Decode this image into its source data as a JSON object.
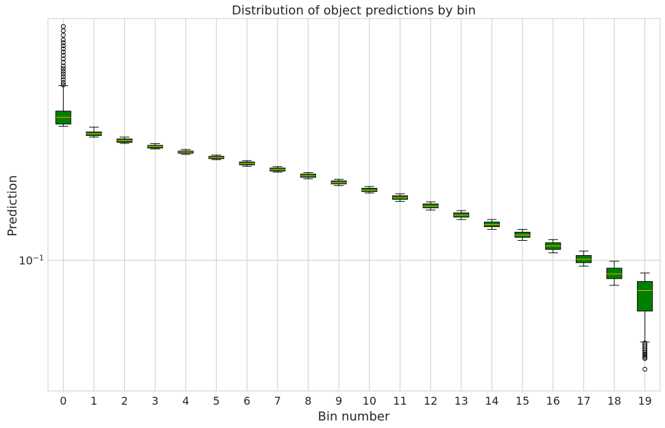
{
  "chart_data": {
    "type": "box",
    "title": "Distribution of object predictions by bin",
    "xlabel": "Bin number",
    "ylabel": "Prediction",
    "y_scale": "log",
    "ylim": [
      0.0255,
      1.25
    ],
    "y_tick_label": {
      "base": "10",
      "exponent": "−1",
      "value": 0.1
    },
    "grid": true,
    "box_color": "#008000",
    "median_color": "#ffa500",
    "categories": [
      "0",
      "1",
      "2",
      "3",
      "4",
      "5",
      "6",
      "7",
      "8",
      "9",
      "10",
      "11",
      "12",
      "13",
      "14",
      "15",
      "16",
      "17",
      "18",
      "19"
    ],
    "boxes": [
      {
        "q1": 0.415,
        "median": 0.445,
        "q3": 0.475,
        "whislo": 0.405,
        "whishi": 0.62,
        "fliers": [
          0.625,
          0.64,
          0.66,
          0.68,
          0.7,
          0.72,
          0.74,
          0.76,
          0.79,
          0.82,
          0.85,
          0.88,
          0.91,
          0.94,
          0.97,
          1.0,
          1.05,
          1.1,
          1.15
        ]
      },
      {
        "q1": 0.368,
        "median": 0.375,
        "q3": 0.382,
        "whislo": 0.362,
        "whishi": 0.402,
        "fliers": []
      },
      {
        "q1": 0.343,
        "median": 0.35,
        "q3": 0.355,
        "whislo": 0.339,
        "whishi": 0.362,
        "fliers": []
      },
      {
        "q1": 0.323,
        "median": 0.328,
        "q3": 0.332,
        "whislo": 0.32,
        "whishi": 0.338,
        "fliers": []
      },
      {
        "q1": 0.306,
        "median": 0.31,
        "q3": 0.313,
        "whislo": 0.302,
        "whishi": 0.318,
        "fliers": []
      },
      {
        "q1": 0.289,
        "median": 0.292,
        "q3": 0.296,
        "whislo": 0.286,
        "whishi": 0.3,
        "fliers": []
      },
      {
        "q1": 0.271,
        "median": 0.275,
        "q3": 0.279,
        "whislo": 0.267,
        "whishi": 0.283,
        "fliers": []
      },
      {
        "q1": 0.254,
        "median": 0.258,
        "q3": 0.262,
        "whislo": 0.251,
        "whishi": 0.266,
        "fliers": []
      },
      {
        "q1": 0.238,
        "median": 0.242,
        "q3": 0.246,
        "whislo": 0.234,
        "whishi": 0.25,
        "fliers": []
      },
      {
        "q1": 0.222,
        "median": 0.225,
        "q3": 0.229,
        "whislo": 0.218,
        "whishi": 0.233,
        "fliers": []
      },
      {
        "q1": 0.205,
        "median": 0.208,
        "q3": 0.212,
        "whislo": 0.202,
        "whishi": 0.216,
        "fliers": []
      },
      {
        "q1": 0.189,
        "median": 0.192,
        "q3": 0.196,
        "whislo": 0.185,
        "whishi": 0.2,
        "fliers": []
      },
      {
        "q1": 0.173,
        "median": 0.176,
        "q3": 0.18,
        "whislo": 0.169,
        "whishi": 0.184,
        "fliers": []
      },
      {
        "q1": 0.157,
        "median": 0.16,
        "q3": 0.164,
        "whislo": 0.153,
        "whishi": 0.168,
        "fliers": []
      },
      {
        "q1": 0.142,
        "median": 0.145,
        "q3": 0.149,
        "whislo": 0.138,
        "whishi": 0.153,
        "fliers": []
      },
      {
        "q1": 0.127,
        "median": 0.13,
        "q3": 0.134,
        "whislo": 0.123,
        "whishi": 0.138,
        "fliers": []
      },
      {
        "q1": 0.112,
        "median": 0.116,
        "q3": 0.12,
        "whislo": 0.108,
        "whishi": 0.124,
        "fliers": []
      },
      {
        "q1": 0.0975,
        "median": 0.101,
        "q3": 0.105,
        "whislo": 0.094,
        "whishi": 0.11,
        "fliers": []
      },
      {
        "q1": 0.0825,
        "median": 0.0866,
        "q3": 0.092,
        "whislo": 0.0769,
        "whishi": 0.0989,
        "fliers": []
      },
      {
        "q1": 0.0588,
        "median": 0.0729,
        "q3": 0.08,
        "whislo": 0.0425,
        "whishi": 0.0875,
        "fliers": [
          0.0421,
          0.0412,
          0.0404,
          0.0396,
          0.0388,
          0.0381,
          0.0375,
          0.0369,
          0.0363,
          0.0358,
          0.032
        ]
      }
    ]
  }
}
